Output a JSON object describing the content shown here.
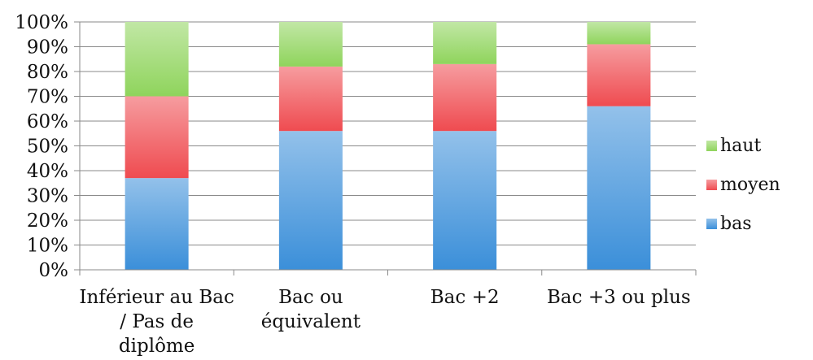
{
  "chart_data": {
    "type": "bar",
    "stacked": true,
    "percent": true,
    "categories": [
      [
        "Inférieur au Bac",
        "/ Pas de",
        "diplôme"
      ],
      [
        "Bac ou",
        "équivalent"
      ],
      [
        "Bac +2"
      ],
      [
        "Bac +3 ou plus"
      ]
    ],
    "series": [
      {
        "name": "bas",
        "values": [
          37,
          56,
          56,
          66
        ],
        "color": "#3b8fd9"
      },
      {
        "name": "moyen",
        "values": [
          33,
          26,
          27,
          25
        ],
        "color": "#ef4b50"
      },
      {
        "name": "haut",
        "values": [
          30,
          18,
          17,
          9
        ],
        "color": "#8fd45c"
      }
    ],
    "yticks": [
      "0%",
      "10%",
      "20%",
      "30%",
      "40%",
      "50%",
      "60%",
      "70%",
      "80%",
      "90%",
      "100%"
    ],
    "ylim": [
      0,
      100
    ],
    "grid": true,
    "legend": {
      "position": "right",
      "order": [
        "haut",
        "moyen",
        "bas"
      ]
    },
    "title": "",
    "xlabel": "",
    "ylabel": ""
  }
}
